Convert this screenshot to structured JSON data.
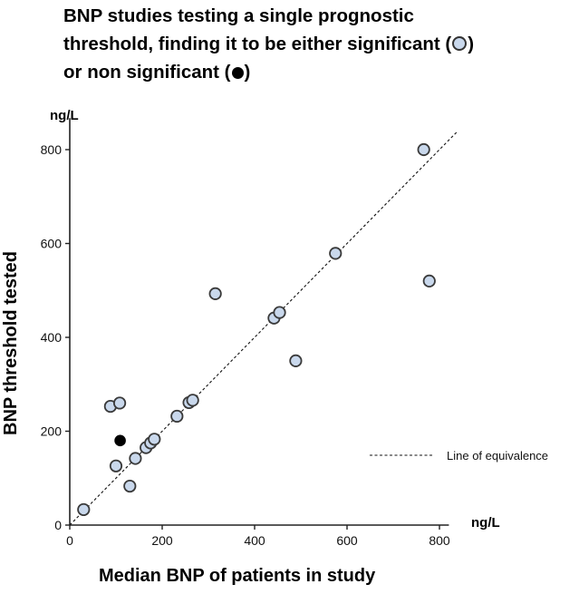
{
  "title": {
    "line1": "BNP studies testing a single prognostic",
    "line2_text": "threshold, finding it to be either significant (",
    "line2_close": ")",
    "line3_text": "or non significant (",
    "line3_close": ")"
  },
  "chart_data": {
    "type": "scatter",
    "title": "BNP studies testing a single prognostic threshold, finding it to be either significant or non significant",
    "xlabel": "Median BNP of patients in study",
    "ylabel": "BNP threshold tested",
    "x_unit": "ng/L",
    "y_unit": "ng/L",
    "xlim": [
      0,
      840
    ],
    "ylim": [
      0,
      840
    ],
    "x_ticks": [
      0,
      200,
      400,
      600,
      800
    ],
    "y_ticks": [
      0,
      200,
      400,
      600,
      800
    ],
    "grid": false,
    "legend_position": "right",
    "reference_line": {
      "label": "Line of equivalence",
      "slope": 1,
      "intercept": 0,
      "style": "dashed"
    },
    "series": [
      {
        "name": "significant",
        "marker": "open-light-blue-circle",
        "color": "#c9d8ec",
        "points": [
          [
            30,
            33
          ],
          [
            88,
            253
          ],
          [
            108,
            260
          ],
          [
            100,
            126
          ],
          [
            130,
            83
          ],
          [
            142,
            142
          ],
          [
            165,
            165
          ],
          [
            175,
            175
          ],
          [
            183,
            183
          ],
          [
            232,
            232
          ],
          [
            258,
            261
          ],
          [
            266,
            266
          ],
          [
            315,
            493
          ],
          [
            442,
            441
          ],
          [
            454,
            453
          ],
          [
            489,
            350
          ],
          [
            575,
            579
          ],
          [
            766,
            800
          ],
          [
            778,
            520
          ]
        ]
      },
      {
        "name": "non significant",
        "marker": "filled-black-circle",
        "color": "#000000",
        "points": [
          [
            109,
            180
          ]
        ]
      }
    ]
  }
}
